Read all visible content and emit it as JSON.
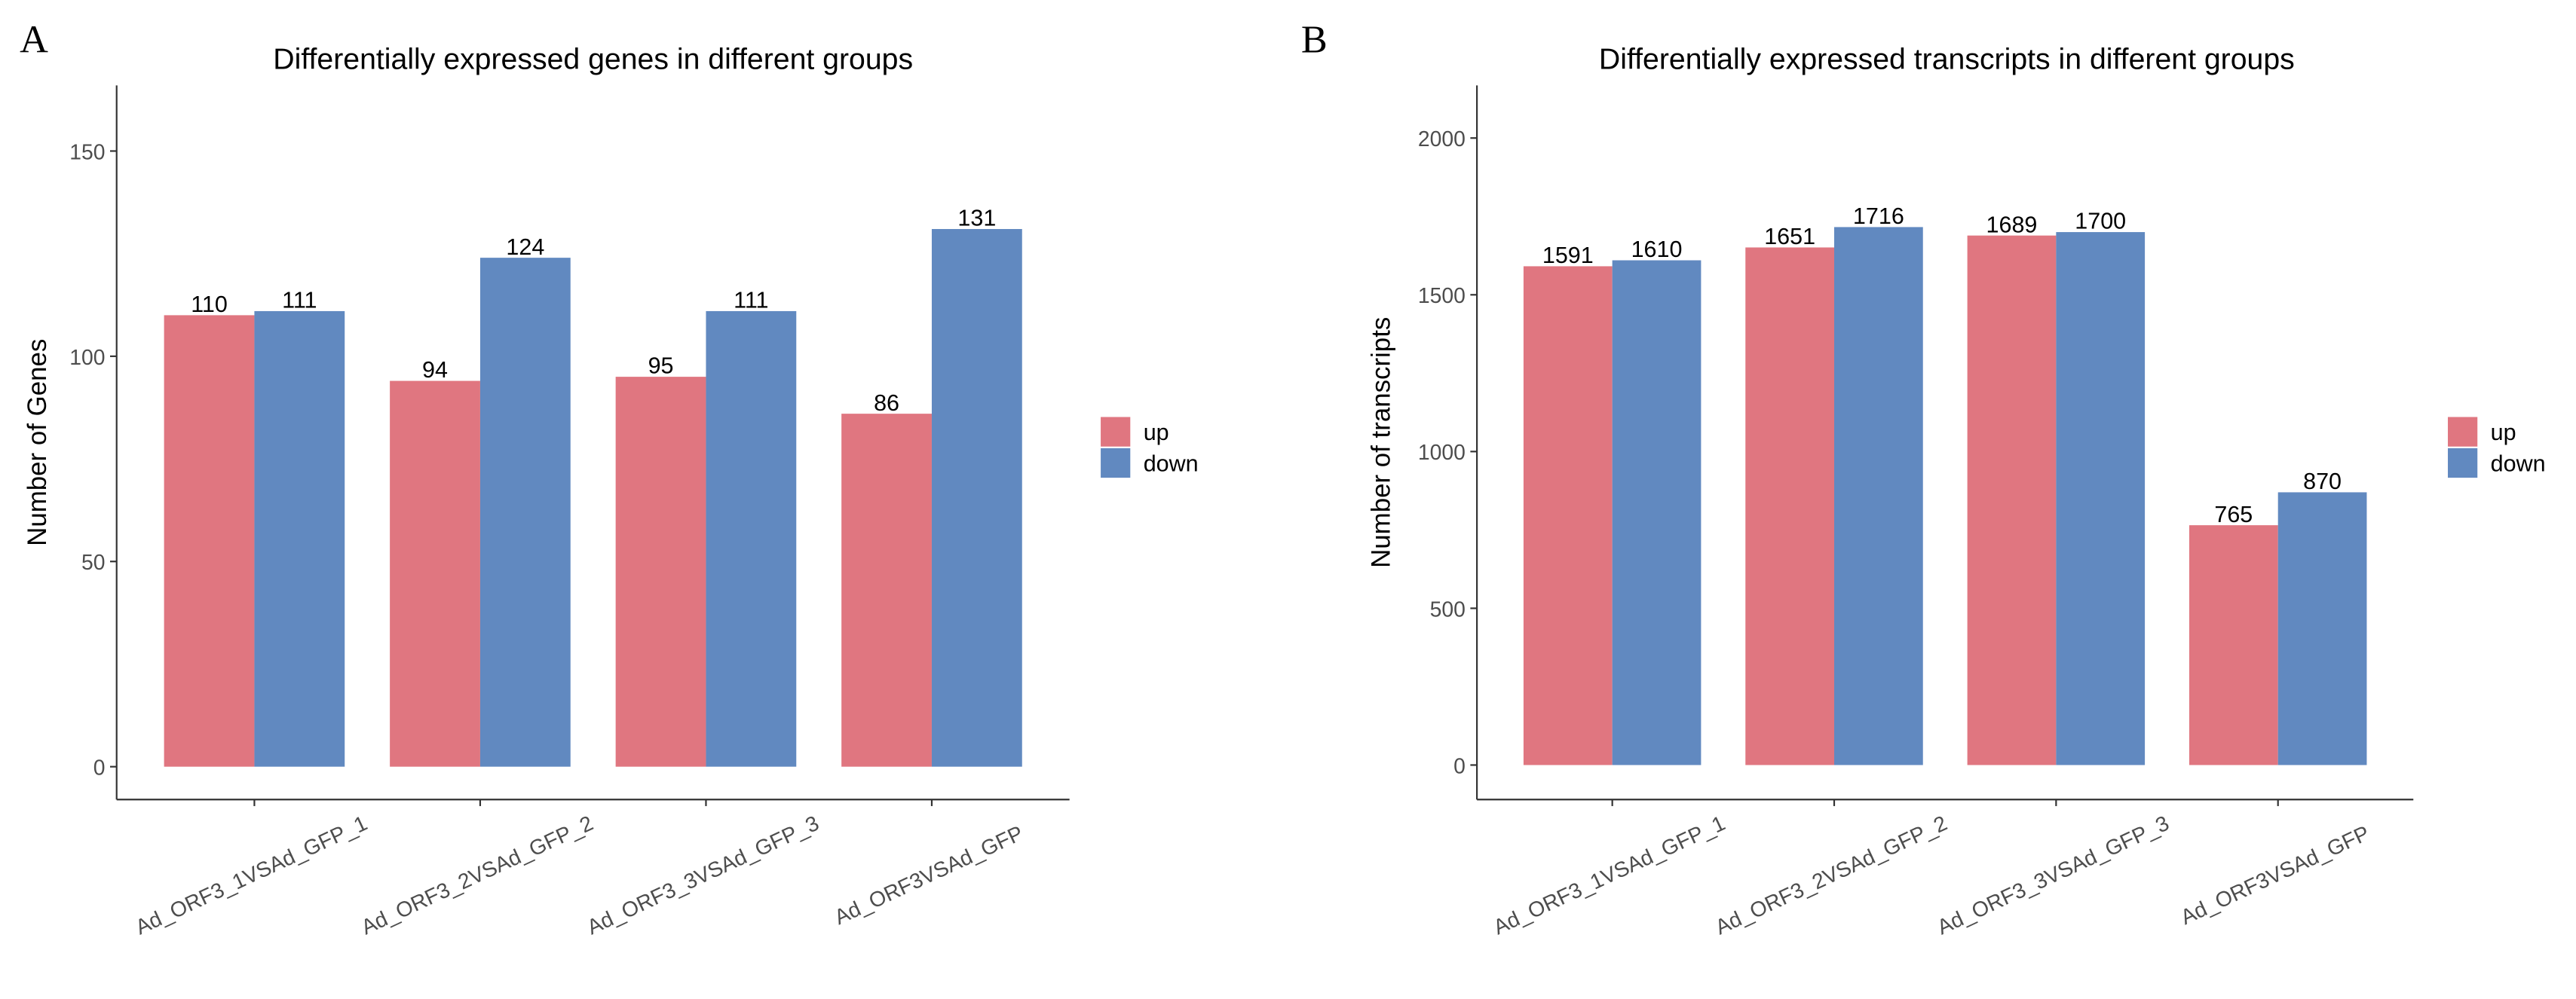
{
  "chart_data": [
    {
      "type": "bar",
      "label": "A",
      "title": "Differentially expressed genes in different groups",
      "ylabel": "Number of Genes",
      "categories": [
        "Ad_ORF3_1VSAd_GFP_1",
        "Ad_ORF3_2VSAd_GFP_2",
        "Ad_ORF3_3VSAd_GFP_3",
        "Ad_ORF3VSAd_GFP"
      ],
      "series": [
        {
          "name": "up",
          "color": "#e07680",
          "values": [
            110,
            94,
            95,
            86
          ]
        },
        {
          "name": "down",
          "color": "#6189c0",
          "values": [
            111,
            124,
            111,
            131
          ]
        }
      ],
      "ylim": [
        -8,
        166
      ],
      "yticks": [
        0,
        50,
        100,
        150
      ],
      "legend": "right"
    },
    {
      "type": "bar",
      "label": "B",
      "title": "Differentially expressed transcripts in different groups",
      "ylabel": "Number of transcripts",
      "categories": [
        "Ad_ORF3_1VSAd_GFP_1",
        "Ad_ORF3_2VSAd_GFP_2",
        "Ad_ORF3_3VSAd_GFP_3",
        "Ad_ORF3VSAd_GFP"
      ],
      "series": [
        {
          "name": "up",
          "color": "#e07680",
          "values": [
            1591,
            1651,
            1689,
            765
          ]
        },
        {
          "name": "down",
          "color": "#6189c0",
          "values": [
            1610,
            1716,
            1700,
            870
          ]
        }
      ],
      "ylim": [
        -110,
        2168
      ],
      "yticks": [
        0,
        500,
        1000,
        1500,
        2000
      ],
      "legend": "right"
    }
  ]
}
